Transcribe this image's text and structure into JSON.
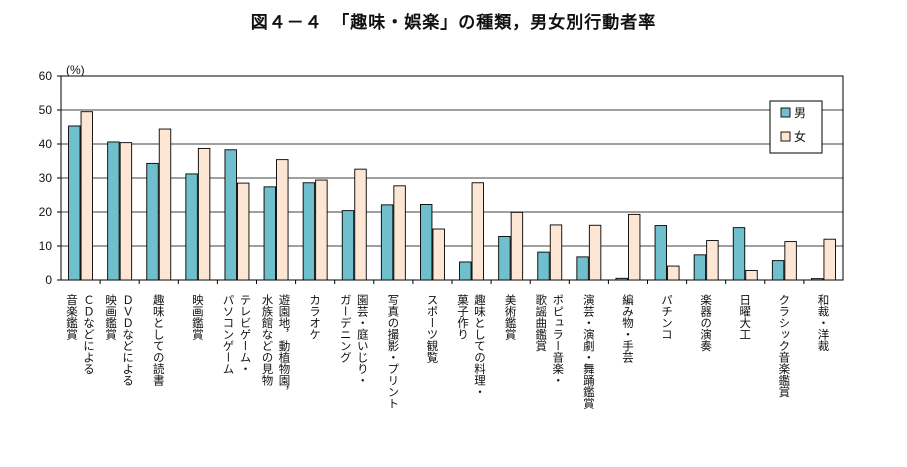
{
  "chart_data": {
    "type": "bar",
    "title": "図４－４　「趣味・娯楽」の種類，男女別行動者率",
    "ylabel": "(%)",
    "ylim": [
      0,
      60
    ],
    "yticks": [
      0,
      10,
      20,
      30,
      40,
      50,
      60
    ],
    "legend_position": "top-right",
    "colors": {
      "male": "#6fbfcc",
      "female": "#fde7d4",
      "stroke": "#000000"
    },
    "categories": [
      [
        "ＣＤなどによる",
        "音楽鑑賞"
      ],
      [
        "ＤＶＤなどによる",
        "映画鑑賞"
      ],
      [
        "趣味としての読書"
      ],
      [
        "映画鑑賞"
      ],
      [
        "テレビゲーム・",
        "パソコンゲーム"
      ],
      [
        "遊園地，動植物園，",
        "水族館などの見物"
      ],
      [
        "カラオケ"
      ],
      [
        "園芸・庭いじり・",
        "ガーデニング"
      ],
      [
        "写真の撮影・プリント"
      ],
      [
        "スポーツ観覧"
      ],
      [
        "趣味としての料理・",
        "菓子作り"
      ],
      [
        "美術鑑賞"
      ],
      [
        "ポピュラー音楽・",
        "歌謡曲鑑賞"
      ],
      [
        "演芸・演劇・舞踊鑑賞"
      ],
      [
        "編み物・手芸"
      ],
      [
        "パチンコ"
      ],
      [
        "楽器の演奏"
      ],
      [
        "日曜大工"
      ],
      [
        "クラシック音楽鑑賞"
      ],
      [
        "和裁・洋裁"
      ]
    ],
    "series": [
      {
        "name": "男",
        "values": [
          45.3,
          40.6,
          34.3,
          31.2,
          38.3,
          27.4,
          28.6,
          20.4,
          22.1,
          22.2,
          5.3,
          12.8,
          8.2,
          6.8,
          0.5,
          16.0,
          7.4,
          15.4,
          5.7,
          0.4
        ]
      },
      {
        "name": "女",
        "values": [
          49.5,
          40.4,
          44.4,
          38.7,
          28.5,
          35.4,
          29.4,
          32.6,
          27.7,
          15.0,
          28.6,
          19.9,
          16.2,
          16.1,
          19.3,
          4.1,
          11.6,
          2.8,
          11.3,
          12.0
        ]
      }
    ]
  }
}
